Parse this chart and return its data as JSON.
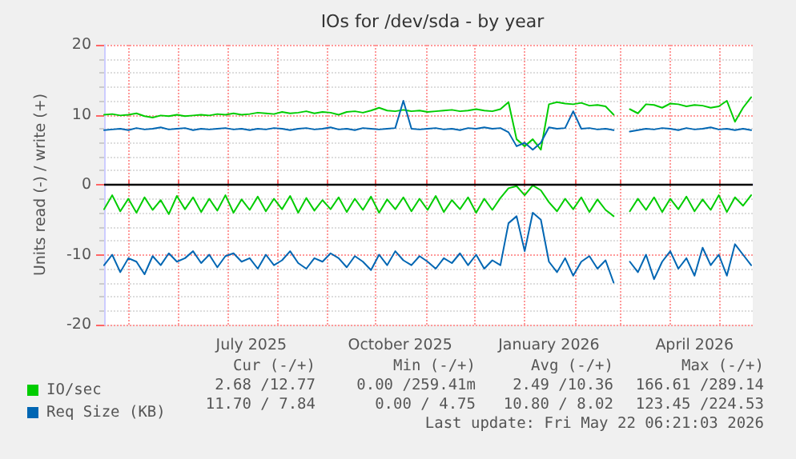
{
  "chart_data": {
    "type": "line",
    "title": "IOs for /dev/sda - by year",
    "ylabel": "Units read (-) / write (+)",
    "x": [
      "2025-04-16",
      "2025-04-21",
      "2025-04-26",
      "2025-05-01",
      "2025-05-06",
      "2025-05-11",
      "2025-05-16",
      "2025-05-21",
      "2025-05-26",
      "2025-05-31",
      "2025-06-05",
      "2025-06-10",
      "2025-06-15",
      "2025-06-20",
      "2025-06-25",
      "2025-06-30",
      "2025-07-05",
      "2025-07-10",
      "2025-07-15",
      "2025-07-20",
      "2025-07-25",
      "2025-07-30",
      "2025-08-04",
      "2025-08-09",
      "2025-08-14",
      "2025-08-19",
      "2025-08-24",
      "2025-08-29",
      "2025-09-03",
      "2025-09-08",
      "2025-09-13",
      "2025-09-18",
      "2025-09-23",
      "2025-09-28",
      "2025-10-03",
      "2025-10-08",
      "2025-10-13",
      "2025-10-18",
      "2025-10-23",
      "2025-10-28",
      "2025-11-02",
      "2025-11-07",
      "2025-11-12",
      "2025-11-17",
      "2025-11-22",
      "2025-11-27",
      "2025-12-02",
      "2025-12-07",
      "2025-12-12",
      "2025-12-17",
      "2025-12-22",
      "2025-12-27",
      "2026-01-01",
      "2026-01-06",
      "2026-01-11",
      "2026-01-16",
      "2026-01-21",
      "2026-01-26",
      "2026-01-31",
      "2026-02-05",
      "2026-02-10",
      "2026-02-15",
      "2026-02-20",
      "2026-02-25",
      "2026-03-02",
      "2026-03-07",
      "2026-03-12",
      "2026-03-17",
      "2026-03-22",
      "2026-03-27",
      "2026-04-01",
      "2026-04-06",
      "2026-04-11",
      "2026-04-16",
      "2026-04-21",
      "2026-04-26",
      "2026-05-01",
      "2026-05-06",
      "2026-05-11",
      "2026-05-16",
      "2026-05-21"
    ],
    "series": [
      {
        "name": "IO/sec",
        "color": "#00cc00",
        "values": [
          10.0,
          10.1,
          9.9,
          10.0,
          10.2,
          9.8,
          9.6,
          9.9,
          9.8,
          10.0,
          9.8,
          9.9,
          10.0,
          9.9,
          10.1,
          10.0,
          10.2,
          10.0,
          10.1,
          10.3,
          10.2,
          10.1,
          10.4,
          10.2,
          10.3,
          10.5,
          10.2,
          10.4,
          10.3,
          10.0,
          10.4,
          10.5,
          10.3,
          10.6,
          11.0,
          10.6,
          10.5,
          10.7,
          10.5,
          10.6,
          10.4,
          10.5,
          10.6,
          10.7,
          10.5,
          10.6,
          10.8,
          10.6,
          10.5,
          10.8,
          11.8,
          6.5,
          5.5,
          6.5,
          5.0,
          11.5,
          11.8,
          11.6,
          11.5,
          11.7,
          11.3,
          11.4,
          11.2,
          10.0,
          null,
          10.8,
          10.2,
          11.5,
          11.4,
          11.0,
          11.6,
          11.5,
          11.2,
          11.4,
          11.3,
          11.0,
          11.2,
          12.0,
          9.0,
          11.0,
          12.5
        ]
      },
      {
        "color": "#00cc00",
        "values": [
          -3.5,
          -1.5,
          -3.8,
          -2.0,
          -4.0,
          -1.8,
          -3.6,
          -2.2,
          -4.2,
          -1.6,
          -3.5,
          -1.8,
          -3.9,
          -2.0,
          -3.7,
          -1.5,
          -4.0,
          -2.1,
          -3.6,
          -1.7,
          -3.8,
          -2.0,
          -3.5,
          -1.6,
          -4.0,
          -1.9,
          -3.7,
          -2.2,
          -3.5,
          -1.8,
          -3.9,
          -2.0,
          -3.6,
          -1.7,
          -4.0,
          -2.1,
          -3.5,
          -1.8,
          -3.8,
          -2.0,
          -3.6,
          -1.6,
          -3.9,
          -2.2,
          -3.5,
          -1.8,
          -4.0,
          -2.0,
          -3.6,
          -1.9,
          -0.5,
          -0.2,
          -1.5,
          -0.1,
          -0.8,
          -2.5,
          -3.8,
          -2.0,
          -3.5,
          -1.8,
          -3.9,
          -2.1,
          -3.6,
          -4.5,
          null,
          -3.8,
          -2.0,
          -3.6,
          -1.8,
          -3.9,
          -2.0,
          -3.5,
          -1.7,
          -3.8,
          -2.1,
          -3.6,
          -1.5,
          -3.9,
          -1.8,
          -3.0,
          -1.5
        ]
      },
      {
        "name": "Req Size (KB)",
        "color": "#0066b3",
        "values": [
          7.8,
          7.9,
          8.0,
          7.8,
          8.1,
          7.9,
          8.0,
          8.2,
          7.9,
          8.0,
          8.1,
          7.8,
          8.0,
          7.9,
          8.0,
          8.1,
          7.9,
          8.0,
          7.8,
          8.0,
          7.9,
          8.1,
          8.0,
          7.8,
          8.0,
          8.1,
          7.9,
          8.0,
          8.2,
          7.9,
          8.0,
          7.8,
          8.1,
          8.0,
          7.9,
          8.0,
          8.1,
          12.0,
          8.0,
          7.9,
          8.0,
          8.1,
          7.9,
          8.0,
          7.8,
          8.1,
          8.0,
          8.2,
          8.0,
          8.1,
          7.5,
          5.5,
          6.0,
          5.0,
          6.0,
          8.2,
          8.0,
          8.1,
          10.5,
          8.0,
          8.1,
          7.9,
          8.0,
          7.8,
          null,
          7.6,
          7.8,
          8.0,
          7.9,
          8.1,
          8.0,
          7.8,
          8.1,
          7.9,
          8.0,
          8.2,
          7.9,
          8.0,
          7.8,
          8.0,
          7.8
        ]
      },
      {
        "color": "#0066b3",
        "values": [
          -11.5,
          -10.0,
          -12.5,
          -10.5,
          -11.0,
          -12.8,
          -10.2,
          -11.5,
          -9.8,
          -11.0,
          -10.5,
          -9.5,
          -11.2,
          -10.0,
          -11.8,
          -10.2,
          -9.8,
          -11.0,
          -10.5,
          -12.0,
          -10.0,
          -11.5,
          -10.8,
          -9.5,
          -11.2,
          -12.0,
          -10.5,
          -11.0,
          -9.8,
          -10.5,
          -11.8,
          -10.2,
          -11.0,
          -12.2,
          -10.0,
          -11.5,
          -9.5,
          -10.8,
          -11.5,
          -10.2,
          -11.0,
          -12.0,
          -10.5,
          -11.2,
          -9.8,
          -11.5,
          -10.0,
          -12.0,
          -10.8,
          -11.5,
          -5.5,
          -4.5,
          -9.5,
          -4.0,
          -5.0,
          -11.0,
          -12.5,
          -10.5,
          -13.0,
          -11.0,
          -10.2,
          -12.0,
          -10.8,
          -14.0,
          null,
          -11.0,
          -12.5,
          -10.0,
          -13.5,
          -11.0,
          -9.5,
          -12.0,
          -10.5,
          -13.0,
          -9.0,
          -11.5,
          -10.0,
          -13.0,
          -8.5,
          -10.0,
          -11.5
        ]
      }
    ],
    "xlim": [
      "2025-04-16",
      "2026-05-22"
    ],
    "xticks": [
      {
        "value": "2025-05-01",
        "label": null
      },
      {
        "value": "2025-06-01",
        "label": null
      },
      {
        "value": "2025-07-01",
        "label": null
      },
      {
        "value": "2025-07-16",
        "label": "July 2025"
      },
      {
        "value": "2025-08-01",
        "label": null
      },
      {
        "value": "2025-09-01",
        "label": null
      },
      {
        "value": "2025-10-01",
        "label": null
      },
      {
        "value": "2025-10-16",
        "label": "October 2025"
      },
      {
        "value": "2025-11-01",
        "label": null
      },
      {
        "value": "2025-12-01",
        "label": null
      },
      {
        "value": "2026-01-01",
        "label": null
      },
      {
        "value": "2026-01-16",
        "label": "January 2026"
      },
      {
        "value": "2026-02-01",
        "label": null
      },
      {
        "value": "2026-03-01",
        "label": null
      },
      {
        "value": "2026-04-01",
        "label": null
      },
      {
        "value": "2026-04-16",
        "label": "April 2026"
      },
      {
        "value": "2026-05-01",
        "label": null
      }
    ],
    "ylim": [
      -20,
      20
    ],
    "yticks": [
      -20,
      -10,
      0,
      10,
      20
    ],
    "ref_lines": [
      {
        "axis": "y",
        "value": 0,
        "color": "#000000"
      }
    ],
    "grid": true,
    "legend": "bottom left",
    "marker": "none",
    "line_style": "solid",
    "annotations": [
      "Cur (-/+)",
      "Min (-/+)",
      "Avg (-/+)",
      "Max (-/+)",
      "2.68 /12.77",
      "0.00 /259.41m",
      "2.49 /10.36",
      "166.61 /289.14",
      "11.70 / 7.84",
      "0.00 / 4.75",
      "10.80 / 8.02",
      "123.45 /224.53",
      "Last update: Fri May 22 06:21:03 2026"
    ]
  }
}
